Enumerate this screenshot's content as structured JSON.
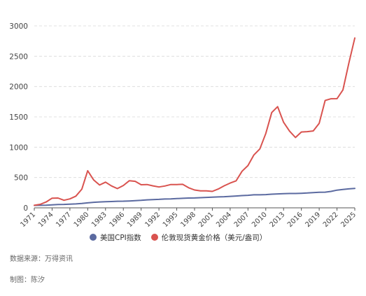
{
  "chart_data": {
    "type": "line",
    "ylim": [
      0,
      3000
    ],
    "yticks": [
      0,
      500,
      1000,
      1500,
      2000,
      2500,
      3000
    ],
    "xlim": [
      1971,
      2025
    ],
    "xticks": [
      1971,
      1974,
      1977,
      1980,
      1983,
      1986,
      1989,
      1992,
      1995,
      1998,
      2001,
      2004,
      2007,
      2010,
      2013,
      2016,
      2019,
      2022,
      2025
    ],
    "grid": "horizontal dashed",
    "legend_position": "bottom",
    "series": [
      {
        "name": "美国CPI指数",
        "color": "#5b6aa0",
        "x": [
          1971,
          1972,
          1973,
          1974,
          1975,
          1976,
          1977,
          1978,
          1979,
          1980,
          1981,
          1982,
          1983,
          1984,
          1985,
          1986,
          1987,
          1988,
          1989,
          1990,
          1991,
          1992,
          1993,
          1994,
          1995,
          1996,
          1997,
          1998,
          1999,
          2000,
          2001,
          2002,
          2003,
          2004,
          2005,
          2006,
          2007,
          2008,
          2009,
          2010,
          2011,
          2012,
          2013,
          2014,
          2015,
          2016,
          2017,
          2018,
          2019,
          2020,
          2021,
          2022,
          2023,
          2024,
          2025
        ],
        "y": [
          40,
          42,
          44,
          49,
          54,
          57,
          61,
          65,
          72,
          82,
          91,
          97,
          100,
          104,
          108,
          110,
          113,
          118,
          124,
          131,
          136,
          140,
          145,
          148,
          152,
          157,
          161,
          163,
          167,
          172,
          177,
          180,
          184,
          189,
          195,
          202,
          207,
          215,
          215,
          218,
          225,
          230,
          233,
          237,
          237,
          240,
          245,
          251,
          256,
          259,
          271,
          292,
          304,
          313,
          320
        ]
      },
      {
        "name": "伦敦现货黄金价格（美元/盎司）",
        "color": "#d9534f",
        "x": [
          1971,
          1972,
          1973,
          1974,
          1975,
          1976,
          1977,
          1978,
          1979,
          1980,
          1981,
          1982,
          1983,
          1984,
          1985,
          1986,
          1987,
          1988,
          1989,
          1990,
          1991,
          1992,
          1993,
          1994,
          1995,
          1996,
          1997,
          1998,
          1999,
          2000,
          2001,
          2002,
          2003,
          2004,
          2005,
          2006,
          2007,
          2008,
          2009,
          2010,
          2011,
          2012,
          2013,
          2014,
          2015,
          2016,
          2017,
          2018,
          2019,
          2020,
          2021,
          2022,
          2023,
          2024,
          2025
        ],
        "y": [
          41,
          58,
          97,
          159,
          161,
          125,
          148,
          193,
          307,
          612,
          460,
          376,
          424,
          361,
          317,
          368,
          447,
          437,
          381,
          384,
          362,
          344,
          360,
          384,
          384,
          388,
          331,
          294,
          279,
          279,
          271,
          310,
          363,
          409,
          445,
          604,
          697,
          872,
          972,
          1225,
          1572,
          1669,
          1411,
          1266,
          1160,
          1251,
          1257,
          1268,
          1393,
          1770,
          1799,
          1800,
          1943,
          2386,
          2800
        ]
      }
    ]
  },
  "legend": {
    "items": [
      {
        "label": "美国CPI指数",
        "color": "#5b6aa0"
      },
      {
        "label": "伦敦现货黄金价格（美元/盎司）",
        "color": "#d9534f"
      }
    ]
  },
  "footer": {
    "source": "数据来源：万得资讯",
    "author": "制图：陈汐"
  }
}
